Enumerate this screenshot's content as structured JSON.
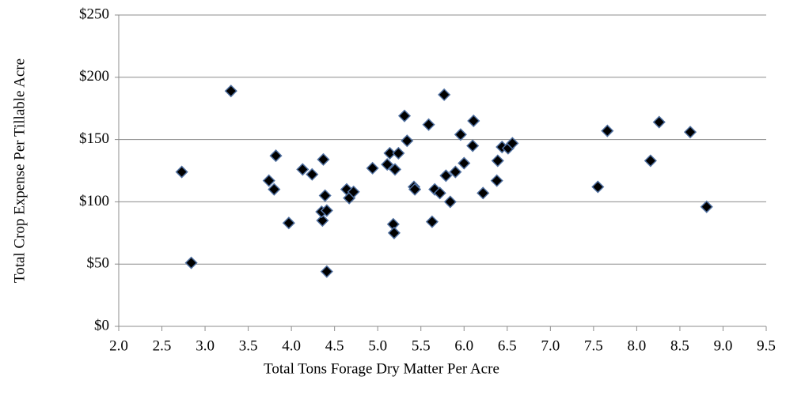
{
  "chart_data": {
    "type": "scatter",
    "x_label": "Total Tons Forage Dry Matter Per Acre",
    "y_label": "Total Crop Expense Per Tillable Acre",
    "color": "#000000",
    "edge_color": "#4f6f9f",
    "grid": true,
    "xlim": [
      2.0,
      9.5
    ],
    "xticks": [
      {
        "value": 2,
        "label": "2.0"
      },
      2.5,
      {
        "value": 3,
        "label": "3.0"
      },
      3.5,
      {
        "value": 4,
        "label": "4.0"
      },
      4.5,
      {
        "value": 5,
        "label": "5.0"
      },
      5.5,
      {
        "value": 6,
        "label": "6.0"
      },
      6.5,
      {
        "value": 7,
        "label": "7.0"
      },
      7.5,
      {
        "value": 8,
        "label": "8.0"
      },
      8.5,
      {
        "value": 9,
        "label": "9.0"
      },
      9.5
    ],
    "ylim": [
      0,
      250
    ],
    "yticks": [
      {
        "value": 0,
        "label": "$0"
      },
      {
        "value": 50,
        "label": "$50"
      },
      {
        "value": 100,
        "label": "$100"
      },
      {
        "value": 150,
        "label": "$150"
      },
      {
        "value": 200,
        "label": "$200"
      },
      {
        "value": 250,
        "label": "$250"
      }
    ],
    "x": [
      2.84,
      2.73,
      3.3,
      3.74,
      3.82,
      3.8,
      3.97,
      4.13,
      4.24,
      4.36,
      4.35,
      4.37,
      4.39,
      4.41,
      4.41,
      4.64,
      4.67,
      4.72,
      4.94,
      5.11,
      5.14,
      5.2,
      5.24,
      5.18,
      5.19,
      5.31,
      5.34,
      5.42,
      5.43,
      5.59,
      5.63,
      5.66,
      5.72,
      5.77,
      5.79,
      5.84,
      5.9,
      5.96,
      6.0,
      6.1,
      6.11,
      6.22,
      6.38,
      6.39,
      6.44,
      6.51,
      6.56,
      7.55,
      7.66,
      8.16,
      8.26,
      8.62,
      8.81
    ],
    "y": [
      51,
      124,
      189,
      117,
      137,
      110,
      83,
      126,
      122,
      85,
      92,
      134,
      105,
      93,
      44,
      110,
      103,
      108,
      127,
      130,
      139,
      126,
      139,
      82,
      75,
      169,
      149,
      112,
      110,
      162,
      84,
      110,
      107,
      186,
      121,
      100,
      124,
      154,
      131,
      145,
      165,
      107,
      117,
      133,
      144,
      143,
      147,
      112,
      157,
      133,
      164,
      156,
      96
    ]
  }
}
